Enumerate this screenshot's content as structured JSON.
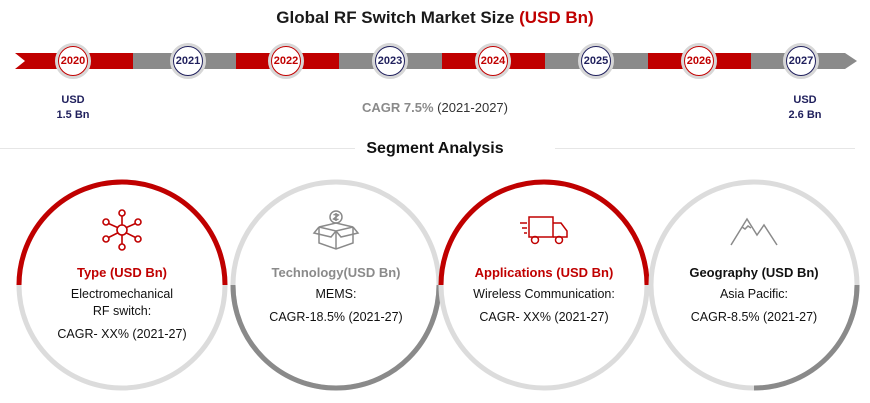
{
  "title": {
    "main": "Global RF Switch Market Size",
    "unit": "(USD Bn)"
  },
  "timeline": {
    "years": [
      "2020",
      "2021",
      "2022",
      "2023",
      "2024",
      "2025",
      "2026",
      "2027"
    ],
    "start": {
      "line1": "USD",
      "line2": "1.5 Bn"
    },
    "end": {
      "line1": "USD",
      "line2": "2.6 Bn"
    },
    "cagr_label": "CAGR 7.5%",
    "cagr_period": "(2021-2027)"
  },
  "segment_title": "Segment Analysis",
  "segments": [
    {
      "title": "Type (USD Bn)",
      "lines": [
        "Electromechanical",
        "RF switch:"
      ],
      "cagr": "CAGR- XX% (2021-27)",
      "icon": "network-nodes-icon"
    },
    {
      "title": "Technology(USD Bn)",
      "lines": [
        "MEMS:"
      ],
      "cagr": "CAGR-18.5% (2021-27)",
      "icon": "money-box-icon"
    },
    {
      "title": "Applications (USD Bn)",
      "lines": [
        "Wireless Communication:"
      ],
      "cagr": "CAGR- XX% (2021-27)",
      "icon": "delivery-truck-icon"
    },
    {
      "title": "Geography (USD Bn)",
      "lines": [
        "Asia Pacific:"
      ],
      "cagr": "CAGR-8.5% (2021-27)",
      "icon": "mountains-icon"
    }
  ],
  "colors": {
    "accent": "#c00000",
    "navy": "#1f1f5c",
    "gray": "#8a8a8a",
    "light_gray": "#dcdcdc"
  }
}
